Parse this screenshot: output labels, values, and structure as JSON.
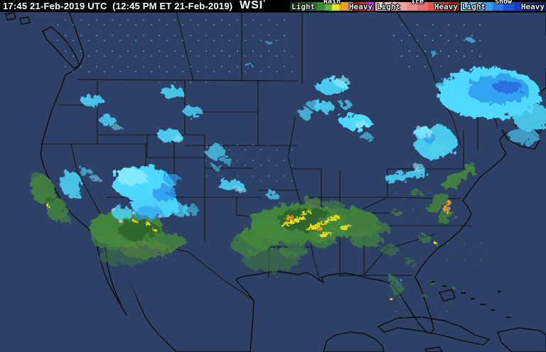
{
  "header": {
    "background": "#000000",
    "timestamp": "17:45 21-Feb-2019 UTC  (12:45 PM ET 21-Feb-2019)",
    "logo_text": "WSI",
    "logo_degree": "°"
  },
  "legend": {
    "sections": [
      {
        "name": "Rain",
        "light_label": "Light",
        "heavy_label": "Heavy",
        "colors": [
          "#143b14",
          "#1c4f1c",
          "#246324",
          "#2d772d",
          "#368b36",
          "#66b332",
          "#e8e41f",
          "#f2a019",
          "#d09a62",
          "#b51313",
          "#e11919",
          "#ef1fd7"
        ]
      },
      {
        "name": "Ice",
        "light_label": "Light",
        "heavy_label": "Heavy",
        "colors": [
          "#f8d7d7",
          "#f5bdbd",
          "#f2a3a3",
          "#ef8989",
          "#ec6f6f",
          "#e75252",
          "#dd3232",
          "#cb1212"
        ]
      },
      {
        "name": "Snow",
        "light_label": "Light",
        "heavy_label": "Heavy",
        "colors": [
          "#55e4ff",
          "#41c3fa",
          "#30a0f0",
          "#2679e4",
          "#1e55d2",
          "#173bbc",
          "#1229a4",
          "#0d1c8a"
        ]
      }
    ]
  },
  "map": {
    "colors": {
      "bar": "#000000",
      "ocean": "#2d4066",
      "land": "#7b5c49",
      "snow_light": "#4fd9ff",
      "snow_bright": "#86e9ff",
      "snow_mid": "#2f9bf0",
      "snow_deep": "#2b63e0",
      "rain_light": "#44883a",
      "rain_dark": "#2c6328",
      "rain_olive": "#5b8a3a",
      "heavy_yellow": "#e9da1e",
      "heavy_orange": "#f0991d",
      "mix_pink": "#f2c7c7"
    }
  }
}
